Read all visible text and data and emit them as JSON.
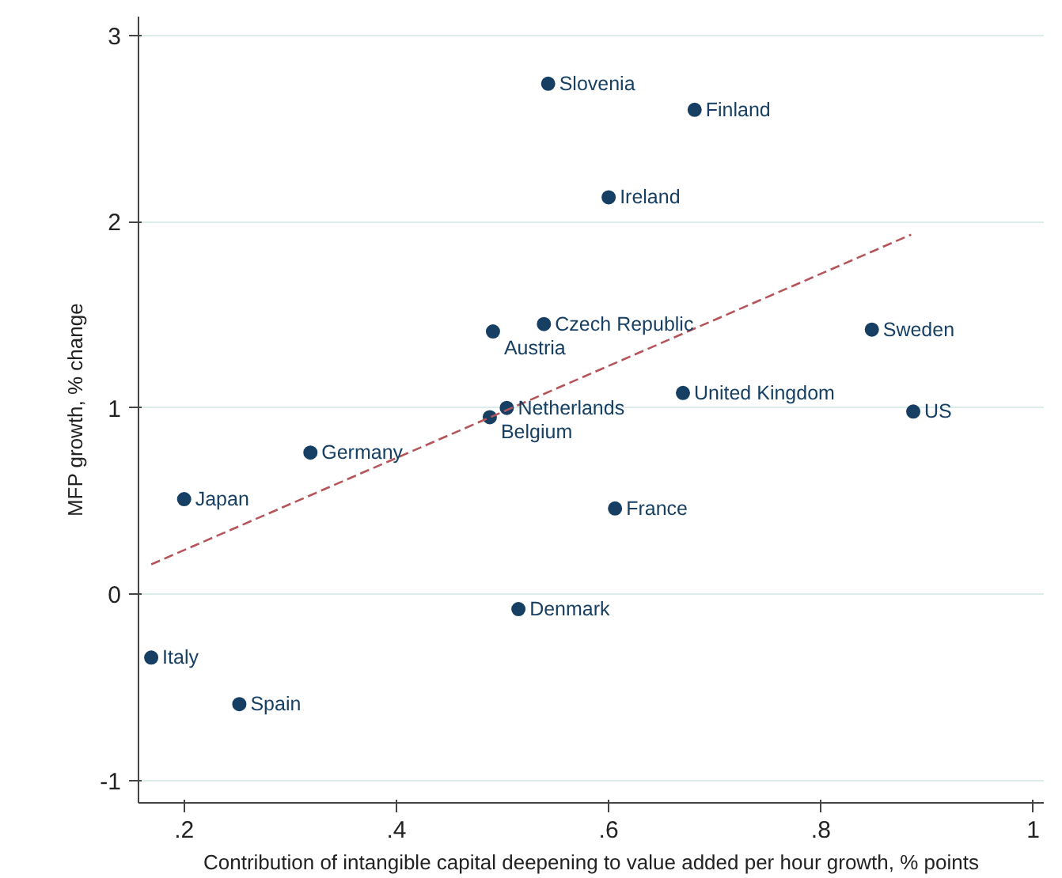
{
  "chart_data": {
    "type": "scatter",
    "xlabel": "Contribution of intangible capital deepening to value added per hour growth, % points",
    "ylabel": "MFP growth, % change",
    "xlim": [
      0.157,
      1.01
    ],
    "ylim": [
      -1.12,
      3.1
    ],
    "xticks": [
      {
        "value": 0.2,
        "label": ".2"
      },
      {
        "value": 0.4,
        "label": ".4"
      },
      {
        "value": 0.6,
        "label": ".6"
      },
      {
        "value": 0.8,
        "label": ".8"
      },
      1
    ],
    "yticks": [
      -1,
      0,
      1,
      2,
      3
    ],
    "grid": "y",
    "marker": "circle",
    "series": [
      {
        "color": "#163f63",
        "x": [
          0.543,
          0.681,
          0.6,
          0.539,
          0.491,
          0.848,
          0.67,
          0.887,
          0.504,
          0.488,
          0.319,
          0.2,
          0.606,
          0.515,
          0.169,
          0.252
        ],
        "values": [
          2.74,
          2.6,
          2.13,
          1.45,
          1.41,
          1.42,
          1.08,
          0.98,
          1.0,
          0.95,
          0.76,
          0.51,
          0.46,
          -0.08,
          -0.34,
          -0.59
        ]
      },
      {
        "type": "line",
        "color": "#b5555a",
        "line_style": "dashed",
        "marker": "none",
        "x": [
          0.169,
          0.885
        ],
        "values": [
          0.16,
          1.93
        ]
      }
    ],
    "annotations": [
      {
        "text": "Slovenia",
        "x": 0.543,
        "y": 2.74
      },
      {
        "text": "Finland",
        "x": 0.681,
        "y": 2.6
      },
      {
        "text": "Ireland",
        "x": 0.6,
        "y": 2.13
      },
      {
        "text": "Czech Republic",
        "x": 0.539,
        "y": 1.45
      },
      {
        "text": "Austria",
        "x": 0.491,
        "y": 1.41
      },
      {
        "text": "Sweden",
        "x": 0.848,
        "y": 1.42
      },
      {
        "text": "United Kingdom",
        "x": 0.67,
        "y": 1.08
      },
      {
        "text": "US",
        "x": 0.887,
        "y": 0.98
      },
      {
        "text": "Netherlands",
        "x": 0.504,
        "y": 1.0
      },
      {
        "text": "Belgium",
        "x": 0.488,
        "y": 0.95
      },
      {
        "text": "Germany",
        "x": 0.319,
        "y": 0.76
      },
      {
        "text": "Japan",
        "x": 0.2,
        "y": 0.51
      },
      {
        "text": "France",
        "x": 0.606,
        "y": 0.46
      },
      {
        "text": "Denmark",
        "x": 0.515,
        "y": -0.08
      },
      {
        "text": "Italy",
        "x": 0.169,
        "y": -0.34
      },
      {
        "text": "Spain",
        "x": 0.252,
        "y": -0.59
      }
    ]
  }
}
